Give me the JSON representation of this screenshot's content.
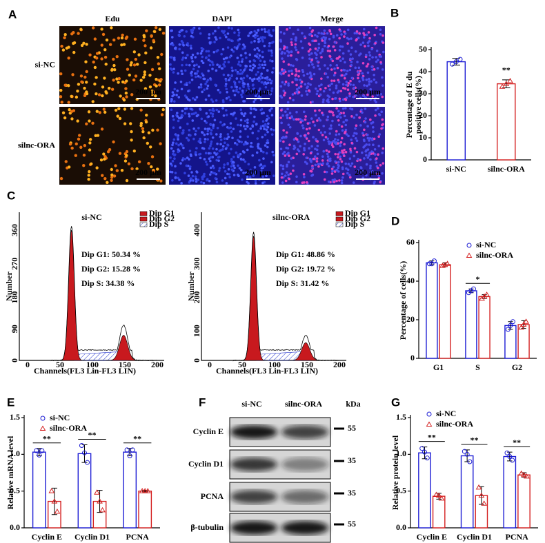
{
  "panels": {
    "A": {
      "label": "A",
      "columns": [
        "Edu",
        "DAPI",
        "Merge"
      ],
      "rows": [
        "si-NC",
        "silnc-ORA"
      ],
      "scale_bar": "200 μm"
    },
    "C": {
      "label": "C",
      "legend": [
        "Dip G1",
        "Dip G2",
        "Dip S"
      ],
      "xticks": [
        "0",
        "50",
        "100",
        "150",
        "200"
      ],
      "xlabel": "Channels(FL3 Lin-FL3 LIN)",
      "ylabel": "Number",
      "plots": [
        {
          "title": "si-NC",
          "stats": [
            "Dip G1: 50.34 %",
            "Dip G2: 15.28 %",
            "Dip S:   34.38 %"
          ],
          "yticks": [
            "0",
            "90",
            "180",
            "270",
            "360"
          ]
        },
        {
          "title": "silnc-ORA",
          "stats": [
            "Dip G1: 48.86 %",
            "Dip G2: 19.72 %",
            "Dip S:   31.42 %"
          ],
          "yticks": [
            "0",
            "100",
            "200",
            "300",
            "400"
          ]
        }
      ]
    },
    "F": {
      "label": "F",
      "columns": [
        "si-NC",
        "silnc-ORA"
      ],
      "unit": "kDa",
      "rows": [
        {
          "name": "Cyclin E",
          "kda": "55"
        },
        {
          "name": "Cyclin D1",
          "kda": "35"
        },
        {
          "name": "PCNA",
          "kda": "35"
        },
        {
          "name": "β-tubulin",
          "kda": "55"
        }
      ]
    }
  },
  "chart_data": [
    {
      "type": "bar",
      "panel": "B",
      "ylabel": [
        "Percentage of E du",
        "positive cells(%)"
      ],
      "categories": [
        "si-NC",
        "silnc-ORA"
      ],
      "colors": [
        "#1c1cd4",
        "#d42020"
      ],
      "values": [
        44.5,
        34.5
      ],
      "errors": [
        1.5,
        1.8
      ],
      "points": [
        [
          43.4,
          45.6,
          44.5
        ],
        [
          33.2,
          35.8,
          34.4
        ]
      ],
      "ylim": [
        0,
        50
      ],
      "yticks": [
        0,
        10,
        20,
        30,
        40,
        50
      ],
      "annotations": [
        "**"
      ]
    },
    {
      "type": "bar",
      "panel": "D",
      "ylabel": [
        "Percentage of cells(%)"
      ],
      "categories": [
        "G1",
        "S",
        "G2"
      ],
      "ylim": [
        0,
        60
      ],
      "yticks": [
        0,
        20,
        40,
        60
      ],
      "annotations": [
        "*"
      ],
      "series": [
        {
          "name": "si-NC",
          "color": "#1c1cd4",
          "values": [
            49.5,
            35,
            17
          ],
          "errors": [
            1,
            1,
            2
          ],
          "points": [
            [
              49,
              50.5,
              49
            ],
            [
              34,
              36,
              35
            ],
            [
              15,
              19,
              17
            ]
          ]
        },
        {
          "name": "silnc-ORA",
          "color": "#d42020",
          "values": [
            48.5,
            32,
            17.5
          ],
          "errors": [
            1,
            1,
            2
          ],
          "points": [
            [
              48,
              49,
              48.5
            ],
            [
              31,
              33,
              32
            ],
            [
              16,
              19,
              17.5
            ]
          ]
        }
      ]
    },
    {
      "type": "bar",
      "panel": "E",
      "ylabel": [
        "Relative mRNA level"
      ],
      "categories": [
        "Cyclin E",
        "Cyclin D1",
        "PCNA"
      ],
      "ylim": [
        0,
        1.5
      ],
      "yticks": [
        {
          "value": 0,
          "label": "0.0"
        },
        0.5,
        {
          "value": 1,
          "label": "1.0"
        },
        1.5
      ],
      "annotations": [
        "**",
        "**",
        "**"
      ],
      "series": [
        {
          "name": "si-NC",
          "color": "#1c1cd4",
          "values": [
            1.03,
            1.01,
            1.03
          ],
          "errors": [
            0.05,
            0.12,
            0.05
          ],
          "points": [
            [
              1.05,
              1.05,
              0.99
            ],
            [
              1.12,
              0.89,
              1.02
            ],
            [
              1.06,
              1.06,
              0.98
            ]
          ]
        },
        {
          "name": "silnc-ORA",
          "color": "#d42020",
          "values": [
            0.36,
            0.36,
            0.5
          ],
          "errors": [
            0.18,
            0.15,
            0.01
          ],
          "points": [
            [
              0.5,
              0.22,
              0.36
            ],
            [
              0.48,
              0.24,
              0.36
            ],
            [
              0.5,
              0.5,
              0.5
            ]
          ]
        }
      ]
    },
    {
      "type": "bar",
      "panel": "G",
      "ylabel": [
        "Relative protein level"
      ],
      "categories": [
        "Cyclin E",
        "Cyclin D1",
        "PCNA"
      ],
      "ylim": [
        0,
        1.5
      ],
      "yticks": [
        {
          "value": 0,
          "label": "0.0"
        },
        0.5,
        {
          "value": 1,
          "label": "1.0"
        },
        1.5
      ],
      "annotations": [
        "**",
        "**",
        "**"
      ],
      "series": [
        {
          "name": "si-NC",
          "color": "#1c1cd4",
          "values": [
            1.02,
            0.98,
            0.97
          ],
          "errors": [
            0.08,
            0.08,
            0.06
          ],
          "points": [
            [
              1.08,
              0.95,
              1.03
            ],
            [
              1.04,
              0.9,
              1.0
            ],
            [
              1.02,
              0.92,
              0.97
            ]
          ]
        },
        {
          "name": "silnc-ORA",
          "color": "#d42020",
          "values": [
            0.43,
            0.44,
            0.72
          ],
          "errors": [
            0.04,
            0.12,
            0.03
          ],
          "points": [
            [
              0.45,
              0.4,
              0.44
            ],
            [
              0.55,
              0.33,
              0.44
            ],
            [
              0.74,
              0.7,
              0.72
            ]
          ]
        }
      ]
    }
  ]
}
